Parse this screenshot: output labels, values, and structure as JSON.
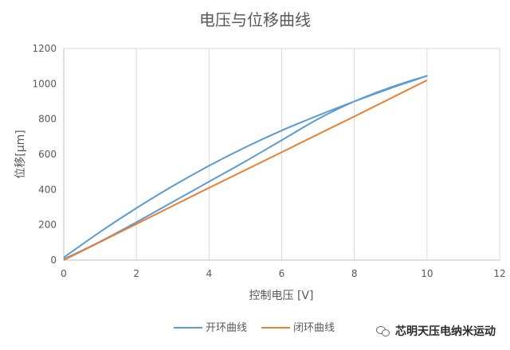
{
  "chart_data": {
    "type": "line",
    "title": "电压与位移曲线",
    "xlabel": "控制电压 [V]",
    "ylabel": "位移[μm]",
    "xlim": [
      0,
      12
    ],
    "ylim": [
      0,
      1200
    ],
    "xticks": [
      "0",
      "2",
      "4",
      "6",
      "8",
      "10",
      "12"
    ],
    "yticks": [
      "0",
      "200",
      "400",
      "600",
      "800",
      "1000",
      "1200"
    ],
    "grid": "vertical",
    "legend": "bottom",
    "series": [
      {
        "name": "开环曲线",
        "color": "#5b9bd5",
        "x": [
          0,
          1,
          2,
          3,
          4,
          5,
          6,
          7,
          8,
          9,
          10,
          9,
          8,
          7,
          6,
          5,
          4,
          3,
          2,
          1,
          0
        ],
        "y": [
          15,
          160,
          295,
          420,
          535,
          640,
          735,
          820,
          900,
          975,
          1045,
          980,
          900,
          800,
          680,
          560,
          445,
          330,
          215,
          105,
          5
        ]
      },
      {
        "name": "闭环曲线",
        "color": "#ed7d31",
        "x": [
          0,
          2,
          4,
          6,
          8,
          10
        ],
        "y": [
          0,
          205,
          410,
          612,
          815,
          1020
        ]
      }
    ]
  },
  "watermark": {
    "text": "芯明天压电纳米运动",
    "icon": "wechat-icon"
  }
}
